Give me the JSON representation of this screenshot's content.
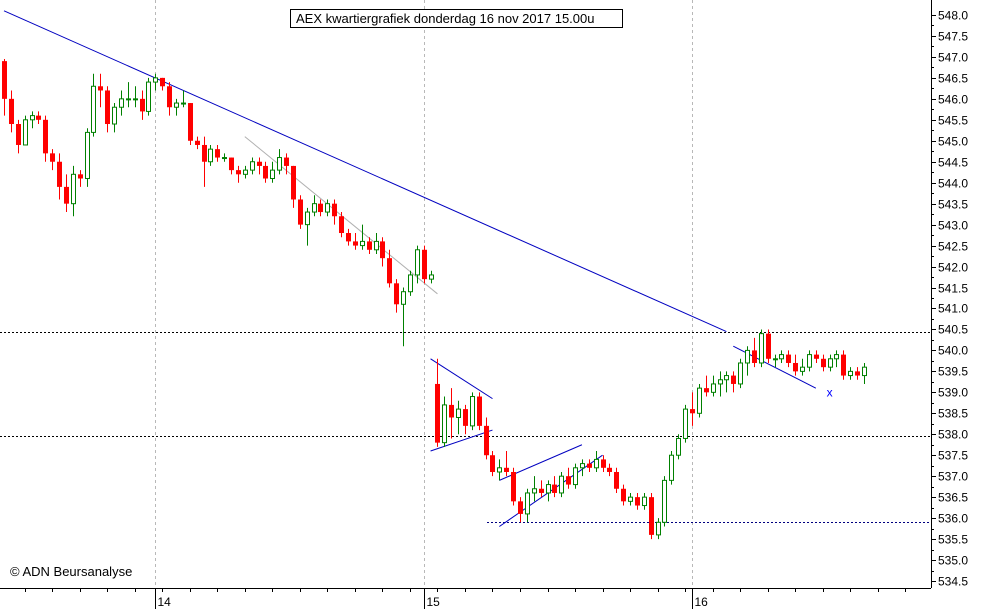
{
  "colors": {
    "background": "#ffffff",
    "bull": "#008000",
    "bear": "#ff0000",
    "trend_main": "#0000c0",
    "trend_light": "#b0b0b0",
    "grid": "#b8b8b8",
    "support": "#000080",
    "marker": "#0000ff"
  },
  "chart_data": {
    "type": "candlestick",
    "title": "AEX kwartiergrafiek donderdag 16 nov 2017 15.00u",
    "watermark": "© ADN Beursanalyse",
    "xlabel": "",
    "ylabel": "",
    "ylim": [
      534.5,
      548.0
    ],
    "y_ticks": [
      548.0,
      547.5,
      547.0,
      546.5,
      546.0,
      545.5,
      545.0,
      544.5,
      544.0,
      543.5,
      543.0,
      542.5,
      542.0,
      541.5,
      541.0,
      540.5,
      540.0,
      539.5,
      539.0,
      538.5,
      538.0,
      537.5,
      537.0,
      536.5,
      536.0,
      535.5,
      535.0,
      534.5
    ],
    "x_axis_labels": [
      {
        "label": "14",
        "bar": 22
      },
      {
        "label": "15",
        "bar": 61
      },
      {
        "label": "16",
        "bar": 100
      }
    ],
    "horizontal_levels": [
      540.45,
      537.95,
      535.9
    ],
    "candles": [
      [
        546.9,
        546.95,
        545.6,
        546.0
      ],
      [
        546.0,
        546.2,
        545.2,
        545.4
      ],
      [
        545.4,
        545.5,
        544.7,
        544.9
      ],
      [
        544.9,
        545.6,
        544.9,
        545.5
      ],
      [
        545.5,
        545.7,
        545.3,
        545.6
      ],
      [
        545.6,
        545.7,
        545.4,
        545.5
      ],
      [
        545.5,
        545.6,
        544.5,
        544.7
      ],
      [
        544.7,
        544.8,
        544.3,
        544.5
      ],
      [
        544.5,
        544.7,
        543.6,
        543.9
      ],
      [
        543.9,
        544.2,
        543.3,
        543.5
      ],
      [
        543.5,
        544.4,
        543.2,
        544.2
      ],
      [
        544.2,
        544.3,
        543.9,
        544.1
      ],
      [
        544.1,
        545.3,
        543.9,
        545.2
      ],
      [
        545.2,
        546.6,
        545.1,
        546.3
      ],
      [
        546.3,
        546.6,
        545.8,
        546.2
      ],
      [
        546.2,
        546.3,
        545.2,
        545.4
      ],
      [
        545.4,
        545.9,
        545.2,
        545.8
      ],
      [
        545.8,
        546.2,
        545.6,
        546.0
      ],
      [
        546.0,
        546.4,
        545.8,
        546.0
      ],
      [
        546.0,
        546.3,
        545.8,
        546.0
      ],
      [
        546.0,
        546.2,
        545.5,
        545.7
      ],
      [
        545.7,
        546.5,
        545.6,
        546.4
      ],
      [
        546.4,
        546.6,
        546.2,
        546.5
      ],
      [
        546.5,
        546.5,
        546.2,
        546.3
      ],
      [
        546.3,
        546.4,
        545.6,
        545.8
      ],
      [
        545.8,
        546.0,
        545.6,
        545.9
      ],
      [
        545.9,
        546.2,
        545.8,
        545.9
      ],
      [
        545.9,
        545.9,
        544.9,
        545.0
      ],
      [
        545.0,
        545.1,
        544.8,
        544.9
      ],
      [
        544.9,
        545.1,
        543.9,
        544.5
      ],
      [
        544.5,
        544.9,
        544.4,
        544.8
      ],
      [
        544.8,
        544.9,
        544.5,
        544.6
      ],
      [
        544.6,
        544.7,
        544.5,
        544.6
      ],
      [
        544.6,
        544.6,
        544.2,
        544.3
      ],
      [
        544.3,
        544.4,
        544.0,
        544.2
      ],
      [
        544.2,
        544.4,
        544.1,
        544.3
      ],
      [
        544.3,
        544.6,
        544.2,
        544.5
      ],
      [
        544.5,
        544.6,
        544.2,
        544.4
      ],
      [
        544.4,
        544.5,
        544.0,
        544.1
      ],
      [
        544.1,
        544.5,
        544.0,
        544.3
      ],
      [
        544.3,
        544.8,
        544.2,
        544.6
      ],
      [
        544.6,
        544.7,
        544.2,
        544.4
      ],
      [
        544.4,
        544.4,
        543.4,
        543.6
      ],
      [
        543.6,
        543.7,
        542.9,
        543.0
      ],
      [
        543.0,
        543.4,
        542.5,
        543.3
      ],
      [
        543.3,
        543.7,
        543.2,
        543.5
      ],
      [
        543.5,
        543.6,
        543.2,
        543.3
      ],
      [
        543.3,
        543.6,
        543.2,
        543.5
      ],
      [
        543.5,
        543.6,
        543.0,
        543.2
      ],
      [
        543.2,
        543.3,
        542.7,
        542.8
      ],
      [
        542.8,
        542.9,
        542.5,
        542.6
      ],
      [
        542.6,
        542.8,
        542.4,
        542.5
      ],
      [
        542.5,
        543.0,
        542.4,
        542.6
      ],
      [
        542.6,
        542.7,
        542.3,
        542.4
      ],
      [
        542.4,
        542.8,
        542.3,
        542.6
      ],
      [
        542.6,
        542.7,
        542.0,
        542.2
      ],
      [
        542.2,
        542.4,
        541.5,
        541.6
      ],
      [
        541.6,
        541.7,
        540.9,
        541.1
      ],
      [
        541.1,
        541.5,
        540.1,
        541.4
      ],
      [
        541.4,
        541.9,
        541.3,
        541.8
      ],
      [
        541.8,
        542.5,
        541.6,
        542.4
      ],
      [
        542.4,
        542.5,
        541.6,
        541.7
      ],
      [
        541.7,
        541.9,
        541.6,
        541.8
      ],
      [
        539.2,
        539.8,
        537.7,
        537.8
      ],
      [
        537.8,
        538.9,
        537.7,
        538.7
      ],
      [
        538.7,
        539.1,
        537.9,
        538.4
      ],
      [
        538.4,
        538.8,
        538.0,
        538.6
      ],
      [
        538.6,
        538.7,
        538.0,
        538.2
      ],
      [
        538.2,
        539.0,
        538.1,
        538.9
      ],
      [
        538.9,
        539.0,
        538.1,
        538.2
      ],
      [
        538.2,
        538.4,
        537.4,
        537.5
      ],
      [
        537.5,
        537.6,
        537.0,
        537.1
      ],
      [
        537.1,
        537.4,
        536.9,
        537.2
      ],
      [
        537.2,
        537.6,
        537.0,
        537.1
      ],
      [
        537.1,
        537.2,
        536.3,
        536.4
      ],
      [
        536.4,
        536.5,
        535.9,
        536.1
      ],
      [
        536.1,
        536.7,
        535.9,
        536.6
      ],
      [
        536.6,
        537.0,
        536.4,
        536.7
      ],
      [
        536.7,
        536.9,
        536.5,
        536.6
      ],
      [
        536.6,
        536.9,
        536.4,
        536.8
      ],
      [
        536.8,
        537.0,
        536.5,
        536.6
      ],
      [
        536.6,
        537.1,
        536.5,
        537.0
      ],
      [
        537.0,
        537.2,
        536.7,
        536.8
      ],
      [
        536.8,
        537.3,
        536.7,
        537.2
      ],
      [
        537.2,
        537.4,
        537.0,
        537.3
      ],
      [
        537.3,
        537.4,
        537.1,
        537.2
      ],
      [
        537.2,
        537.6,
        537.1,
        537.4
      ],
      [
        537.4,
        537.5,
        537.1,
        537.2
      ],
      [
        537.2,
        537.3,
        537.0,
        537.1
      ],
      [
        537.1,
        537.2,
        536.6,
        536.7
      ],
      [
        536.7,
        536.8,
        536.3,
        536.4
      ],
      [
        536.4,
        536.6,
        536.3,
        536.5
      ],
      [
        536.5,
        536.6,
        536.2,
        536.3
      ],
      [
        536.3,
        536.6,
        536.2,
        536.5
      ],
      [
        536.5,
        536.6,
        535.5,
        535.6
      ],
      [
        535.6,
        536.0,
        535.5,
        535.9
      ],
      [
        535.9,
        537.0,
        535.8,
        536.9
      ],
      [
        536.9,
        537.6,
        536.8,
        537.5
      ],
      [
        537.5,
        538.0,
        537.4,
        537.9
      ],
      [
        537.9,
        538.7,
        537.8,
        538.6
      ],
      [
        538.6,
        539.0,
        538.2,
        538.5
      ],
      [
        538.5,
        539.2,
        538.4,
        539.1
      ],
      [
        539.1,
        539.4,
        538.9,
        539.0
      ],
      [
        539.0,
        539.4,
        538.9,
        539.2
      ],
      [
        539.2,
        539.5,
        538.9,
        539.3
      ],
      [
        539.3,
        539.5,
        539.0,
        539.4
      ],
      [
        539.4,
        539.5,
        539.0,
        539.2
      ],
      [
        539.2,
        539.8,
        539.1,
        539.7
      ],
      [
        539.7,
        540.1,
        539.4,
        540.0
      ],
      [
        540.0,
        540.3,
        539.6,
        539.7
      ],
      [
        539.7,
        540.5,
        539.6,
        540.4
      ],
      [
        540.4,
        540.5,
        539.7,
        539.8
      ],
      [
        539.8,
        539.9,
        539.6,
        539.8
      ],
      [
        539.8,
        540.0,
        539.7,
        539.9
      ],
      [
        539.9,
        540.0,
        539.6,
        539.7
      ],
      [
        539.7,
        539.9,
        539.4,
        539.5
      ],
      [
        539.5,
        539.8,
        539.4,
        539.6
      ],
      [
        539.6,
        540.0,
        539.5,
        539.9
      ],
      [
        539.9,
        540.0,
        539.7,
        539.8
      ],
      [
        539.8,
        539.9,
        539.5,
        539.6
      ],
      [
        539.6,
        539.9,
        539.5,
        539.8
      ],
      [
        539.8,
        540.0,
        539.6,
        539.9
      ],
      [
        539.9,
        540.0,
        539.3,
        539.4
      ],
      [
        539.4,
        539.6,
        539.3,
        539.5
      ],
      [
        539.5,
        539.6,
        539.3,
        539.4
      ],
      [
        539.4,
        539.7,
        539.2,
        539.6
      ]
    ],
    "trendlines": [
      {
        "style": "main",
        "from": [
          0,
          548.1
        ],
        "to": [
          105,
          540.45
        ]
      },
      {
        "style": "main",
        "from": [
          106,
          540.1
        ],
        "to": [
          118,
          539.1
        ]
      },
      {
        "style": "light",
        "from": [
          35,
          545.1
        ],
        "to": [
          63,
          541.35
        ]
      },
      {
        "style": "main",
        "from": [
          62,
          539.8
        ],
        "to": [
          71,
          538.85
        ]
      },
      {
        "style": "main",
        "from": [
          62,
          537.6
        ],
        "to": [
          71,
          538.1
        ]
      },
      {
        "style": "main",
        "from": [
          72,
          536.9
        ],
        "to": [
          84,
          537.75
        ]
      },
      {
        "style": "main",
        "from": [
          72,
          535.8
        ],
        "to": [
          87,
          537.5
        ]
      }
    ],
    "markers": [
      {
        "label": "x",
        "bar": 120,
        "value": 539.0
      }
    ]
  }
}
